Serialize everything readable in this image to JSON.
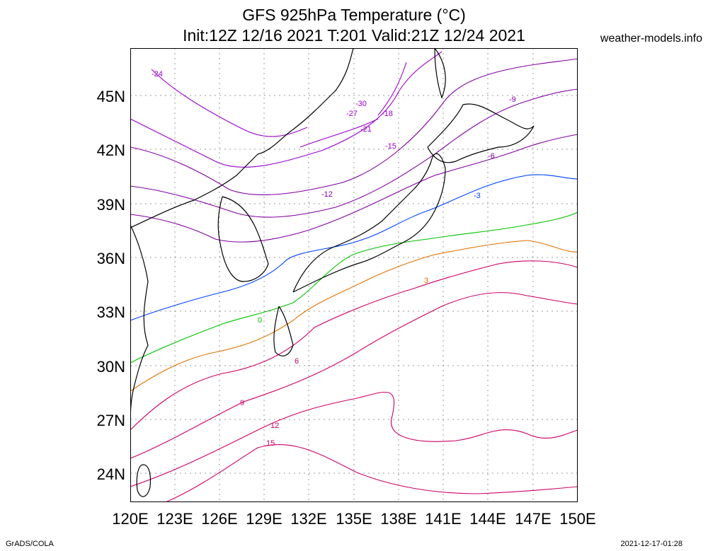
{
  "title_line1": "GFS 925hPa Temperature (°C)",
  "title_line2": "Init:12Z 12/16 2021 T:201 Valid:21Z 12/24 2021",
  "site": "weather-models.info",
  "footer_left": "GrADS/COLA",
  "footer_right": "2021-12-17-01:28",
  "lat_labels": [
    "45N",
    "42N",
    "39N",
    "36N",
    "33N",
    "30N",
    "27N",
    "24N"
  ],
  "lon_labels": [
    "120E",
    "123E",
    "126E",
    "129E",
    "132E",
    "135E",
    "138E",
    "141E",
    "144E",
    "147E",
    "150E"
  ],
  "contour_labels": [
    "-30",
    "-27",
    "-24",
    "-21",
    "-18",
    "-15",
    "-12",
    "-9",
    "-6",
    "-3",
    "0",
    "3",
    "6",
    "9",
    "12",
    "15"
  ],
  "colors": {
    "cold": "#9900cc",
    "cool": "#8000a0",
    "blue": "#0040ff",
    "green": "#00c000",
    "orange": "#e07000",
    "warm": "#cc0066",
    "coast": "#000000"
  }
}
